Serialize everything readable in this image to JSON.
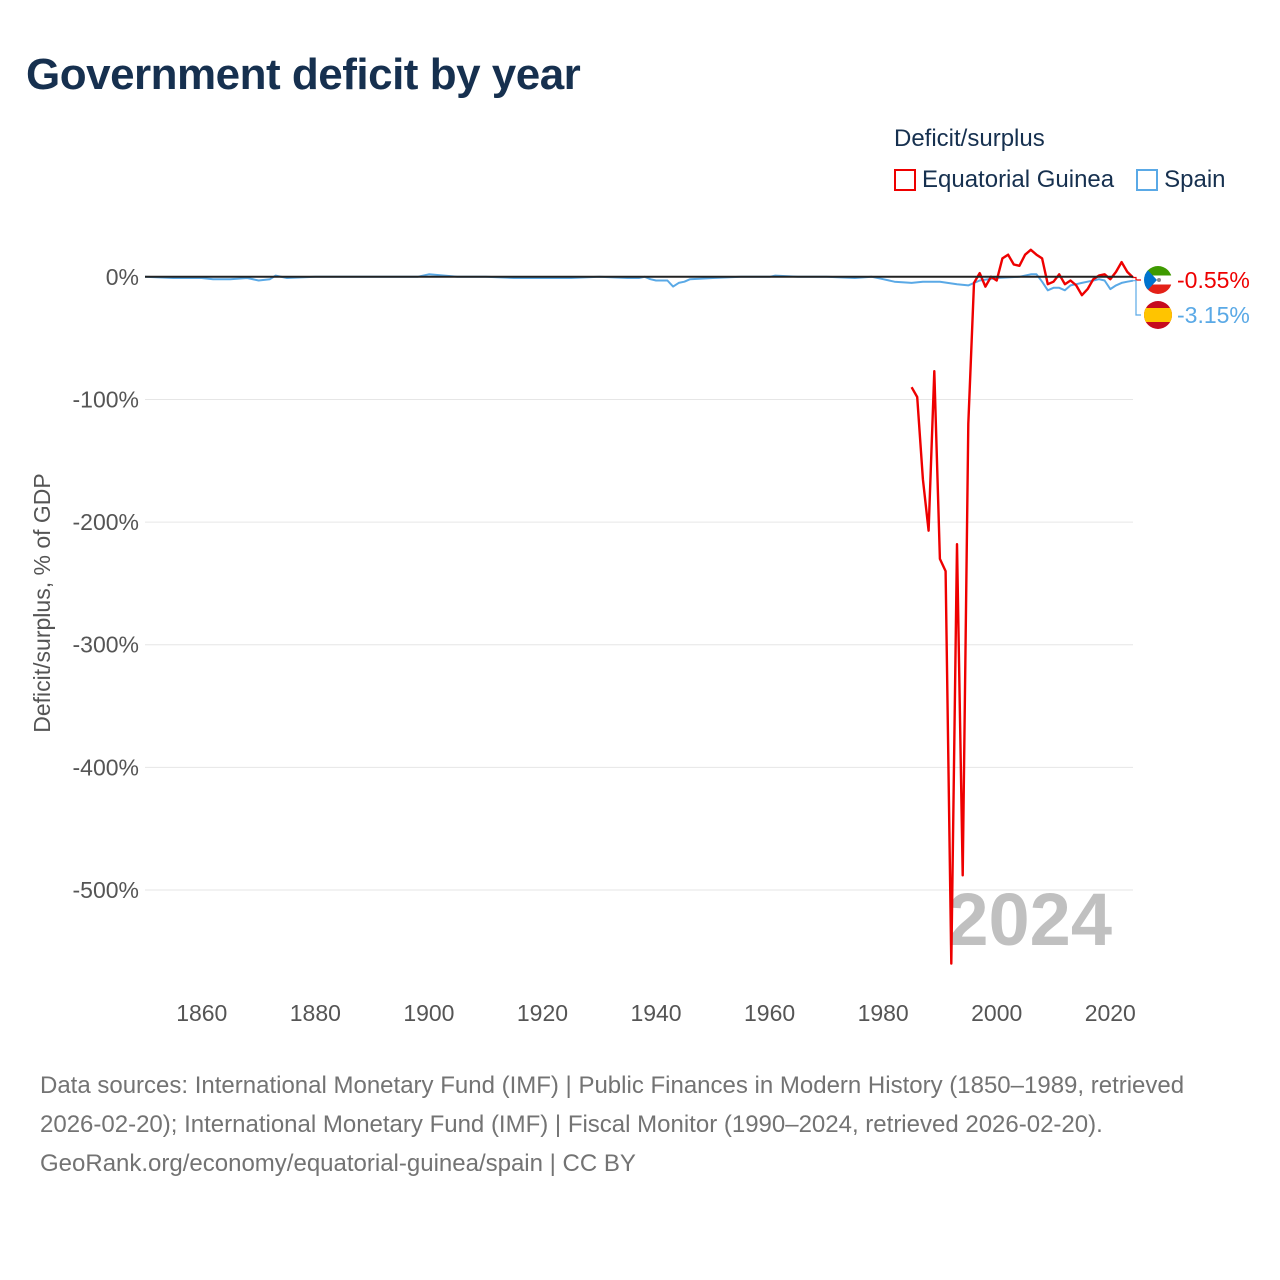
{
  "title": "Government deficit by year",
  "legend": {
    "title": "Deficit/surplus",
    "items": [
      {
        "label": "Equatorial Guinea",
        "color": "#ee0000"
      },
      {
        "label": "Spain",
        "color": "#5aa9e6"
      }
    ]
  },
  "year_watermark": "2024",
  "footer": {
    "sources": "Data sources: International Monetary Fund (IMF) | Public Finances in Modern History (1850–1989, retrieved 2026-02-20); International Monetary Fund (IMF) | Fiscal Monitor (1990–2024, retrieved 2026-02-20).",
    "credit": "GeoRank.org/economy/equatorial-guinea/spain | CC BY"
  },
  "chart_data": {
    "type": "line",
    "title": "Government deficit by year",
    "xlabel": "",
    "ylabel": "Deficit/surplus, % of GDP",
    "xlim": [
      1850,
      2024
    ],
    "ylim": [
      -575,
      30
    ],
    "x_ticks": [
      1860,
      1880,
      1900,
      1920,
      1940,
      1960,
      1980,
      2000,
      2020
    ],
    "x_tick_labels": [
      "1860",
      "1880",
      "1900",
      "1920",
      "1940",
      "1960",
      "1980",
      "2000",
      "2020"
    ],
    "y_ticks": [
      0,
      -100,
      -200,
      -300,
      -400,
      -500
    ],
    "y_tick_labels": [
      "0%",
      "-100%",
      "-200%",
      "-300%",
      "-400%",
      "-500%"
    ],
    "zero_line": 0,
    "series": [
      {
        "name": "Equatorial Guinea",
        "color": "#ee0000",
        "end_label": "-0.55%",
        "x": [
          1985,
          1986,
          1987,
          1988,
          1989,
          1990,
          1991,
          1992,
          1993,
          1994,
          1995,
          1996,
          1997,
          1998,
          1999,
          2000,
          2001,
          2002,
          2003,
          2004,
          2005,
          2006,
          2007,
          2008,
          2009,
          2010,
          2011,
          2012,
          2013,
          2014,
          2015,
          2016,
          2017,
          2018,
          2019,
          2020,
          2021,
          2022,
          2023,
          2024
        ],
        "values": [
          -90,
          -98,
          -165,
          -207,
          -77,
          -230,
          -240,
          -560,
          -218,
          -488,
          -120,
          -5,
          3,
          -8,
          0,
          -3,
          15,
          18,
          10,
          9,
          18,
          22,
          18,
          15,
          -6,
          -4,
          2,
          -6,
          -3,
          -7,
          -15,
          -10,
          -2,
          1,
          2,
          -2,
          4,
          12,
          4,
          -0.55
        ]
      },
      {
        "name": "Spain",
        "color": "#5aa9e6",
        "end_label": "-3.15%",
        "x": [
          1850,
          1855,
          1860,
          1862,
          1865,
          1868,
          1870,
          1872,
          1873,
          1875,
          1880,
          1885,
          1890,
          1895,
          1898,
          1900,
          1905,
          1910,
          1915,
          1920,
          1925,
          1930,
          1935,
          1937,
          1938,
          1939,
          1940,
          1941,
          1942,
          1943,
          1944,
          1945,
          1946,
          1950,
          1955,
          1960,
          1961,
          1965,
          1970,
          1975,
          1978,
          1980,
          1982,
          1985,
          1987,
          1990,
          1993,
          1995,
          1997,
          2000,
          2004,
          2006,
          2007,
          2008,
          2009,
          2010,
          2011,
          2012,
          2013,
          2014,
          2015,
          2016,
          2017,
          2018,
          2019,
          2020,
          2021,
          2022,
          2023,
          2024
        ],
        "values": [
          0,
          -1,
          -1,
          -2,
          -2,
          -1,
          -3,
          -2,
          1,
          -1,
          0,
          0,
          0,
          0,
          0,
          2,
          0,
          0,
          -1,
          -1,
          -1,
          0,
          -1,
          -1,
          0,
          -2,
          -3,
          -3,
          -3,
          -8,
          -5,
          -4,
          -2,
          -1,
          0,
          0,
          1,
          0,
          0,
          -1,
          0,
          -2,
          -4,
          -5,
          -4,
          -4,
          -6,
          -7,
          -3,
          -1,
          0,
          2,
          2,
          -4,
          -11,
          -9,
          -9,
          -11,
          -7,
          -6,
          -5,
          -4,
          -3,
          -2,
          -3,
          -10,
          -7,
          -5,
          -4,
          -3.15
        ]
      }
    ]
  }
}
